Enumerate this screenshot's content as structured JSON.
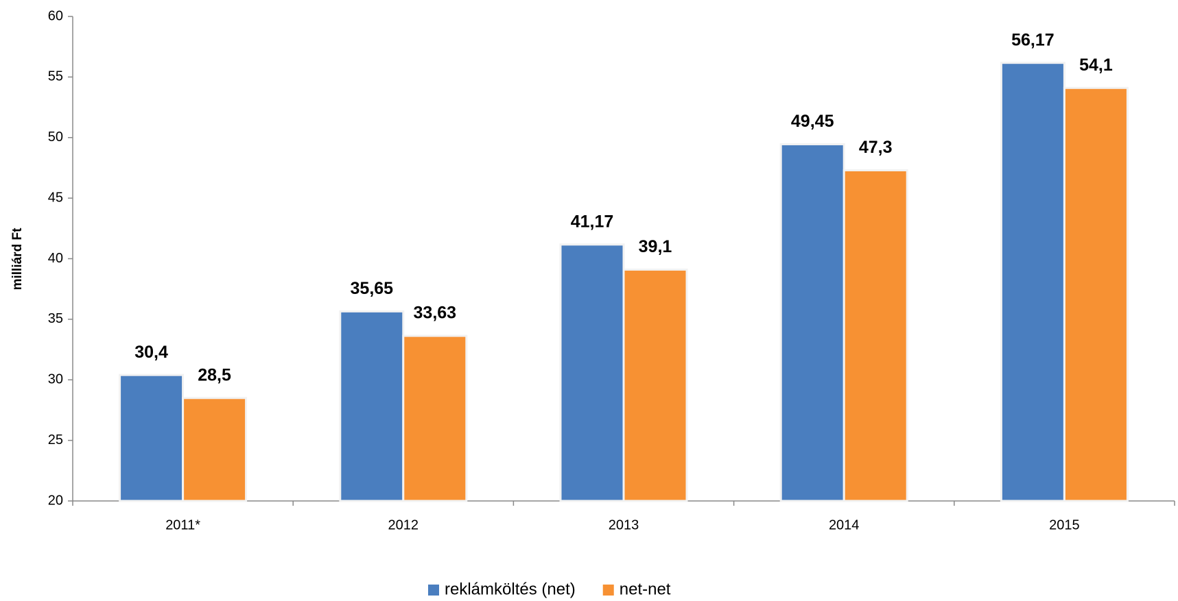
{
  "chart_data": {
    "type": "bar",
    "y_label": "milliárd Ft",
    "categories": [
      "2011*",
      "2012",
      "2013",
      "2014",
      "2015"
    ],
    "series": [
      {
        "name": "reklámköltés (net)",
        "color": "#4a7ebf",
        "values": [
          30.4,
          35.65,
          41.17,
          49.45,
          56.17
        ],
        "value_labels": [
          "30,4",
          "35,65",
          "41,17",
          "49,45",
          "56,17"
        ]
      },
      {
        "name": "net-net",
        "color": "#f79133",
        "values": [
          28.5,
          33.63,
          39.1,
          47.3,
          54.1
        ],
        "value_labels": [
          "28,5",
          "33,63",
          "39,1",
          "47,3",
          "54,1"
        ]
      }
    ],
    "ylim": [
      20,
      60
    ],
    "yticks": [
      20,
      25,
      30,
      35,
      40,
      45,
      50,
      55,
      60
    ],
    "grid": false,
    "legend": "bottom"
  }
}
